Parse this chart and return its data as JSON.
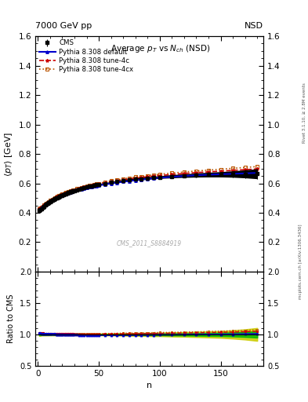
{
  "title_top_left": "7000 GeV pp",
  "title_top_right": "NSD",
  "plot_title": "Average $p_T$ vs $N_{ch}$ (NSD)",
  "xlabel": "n",
  "ylabel_main": "$\\langle p_T \\rangle$ [GeV]",
  "ylabel_ratio": "Ratio to CMS",
  "watermark": "CMS_2011_S8884919",
  "right_label": "mcplots.cern.ch [arXiv:1306.3436]",
  "right_label2": "Rivet 3.1.10, ≥ 2.8M events",
  "xlim": [
    -2,
    185
  ],
  "ylim_main": [
    0.0,
    1.6
  ],
  "ylim_ratio": [
    0.5,
    2.0
  ],
  "yticks_main": [
    0.2,
    0.4,
    0.6,
    0.8,
    1.0,
    1.2,
    1.4,
    1.6
  ],
  "yticks_ratio": [
    0.5,
    1.0,
    1.5,
    2.0
  ],
  "xticks": [
    0,
    50,
    100,
    150
  ],
  "cms_color": "#000000",
  "default_color": "#0000cc",
  "tune4c_color": "#cc0000",
  "tune4cx_color": "#bb5500",
  "cms_n": [
    1,
    2,
    3,
    4,
    5,
    6,
    7,
    8,
    9,
    10,
    11,
    12,
    13,
    14,
    15,
    16,
    17,
    18,
    19,
    20,
    21,
    22,
    23,
    24,
    25,
    26,
    27,
    28,
    29,
    30,
    32,
    34,
    36,
    38,
    40,
    42,
    44,
    46,
    48,
    50,
    55,
    60,
    65,
    70,
    75,
    80,
    85,
    90,
    95,
    100,
    110,
    120,
    130,
    140,
    150,
    160,
    170,
    180
  ],
  "cms_pt": [
    0.415,
    0.42,
    0.428,
    0.436,
    0.444,
    0.451,
    0.458,
    0.464,
    0.47,
    0.476,
    0.481,
    0.486,
    0.491,
    0.495,
    0.5,
    0.504,
    0.508,
    0.512,
    0.516,
    0.52,
    0.523,
    0.527,
    0.53,
    0.533,
    0.537,
    0.54,
    0.543,
    0.546,
    0.549,
    0.552,
    0.557,
    0.562,
    0.567,
    0.572,
    0.576,
    0.58,
    0.584,
    0.587,
    0.59,
    0.593,
    0.6,
    0.607,
    0.613,
    0.618,
    0.623,
    0.628,
    0.632,
    0.636,
    0.639,
    0.642,
    0.648,
    0.652,
    0.656,
    0.659,
    0.661,
    0.663,
    0.664,
    0.665
  ],
  "cms_err": [
    0.005,
    0.005,
    0.004,
    0.004,
    0.004,
    0.004,
    0.004,
    0.004,
    0.004,
    0.004,
    0.004,
    0.004,
    0.004,
    0.004,
    0.004,
    0.004,
    0.004,
    0.004,
    0.004,
    0.004,
    0.004,
    0.004,
    0.004,
    0.004,
    0.004,
    0.004,
    0.004,
    0.004,
    0.004,
    0.004,
    0.004,
    0.004,
    0.004,
    0.004,
    0.004,
    0.004,
    0.004,
    0.004,
    0.004,
    0.004,
    0.005,
    0.005,
    0.006,
    0.006,
    0.007,
    0.007,
    0.008,
    0.008,
    0.009,
    0.009,
    0.011,
    0.012,
    0.014,
    0.016,
    0.018,
    0.022,
    0.027,
    0.034
  ],
  "default_n": [
    1,
    2,
    3,
    4,
    5,
    6,
    7,
    8,
    9,
    10,
    11,
    12,
    13,
    14,
    15,
    16,
    17,
    18,
    19,
    20,
    21,
    22,
    23,
    24,
    25,
    26,
    27,
    28,
    29,
    30,
    32,
    34,
    36,
    38,
    40,
    42,
    44,
    46,
    48,
    50,
    55,
    60,
    65,
    70,
    75,
    80,
    85,
    90,
    95,
    100,
    110,
    120,
    130,
    140,
    150,
    160,
    170,
    180
  ],
  "default_pt": [
    0.423,
    0.428,
    0.435,
    0.442,
    0.449,
    0.456,
    0.462,
    0.468,
    0.474,
    0.479,
    0.484,
    0.489,
    0.494,
    0.498,
    0.502,
    0.506,
    0.51,
    0.514,
    0.517,
    0.521,
    0.524,
    0.527,
    0.53,
    0.533,
    0.536,
    0.539,
    0.541,
    0.544,
    0.547,
    0.549,
    0.554,
    0.558,
    0.562,
    0.566,
    0.57,
    0.574,
    0.577,
    0.58,
    0.583,
    0.586,
    0.593,
    0.599,
    0.605,
    0.611,
    0.616,
    0.621,
    0.626,
    0.63,
    0.634,
    0.638,
    0.644,
    0.65,
    0.655,
    0.659,
    0.662,
    0.665,
    0.668,
    0.671
  ],
  "tune4c_n": [
    1,
    2,
    3,
    4,
    5,
    6,
    7,
    8,
    9,
    10,
    11,
    12,
    13,
    14,
    15,
    16,
    17,
    18,
    19,
    20,
    21,
    22,
    23,
    24,
    25,
    26,
    27,
    28,
    29,
    30,
    32,
    34,
    36,
    38,
    40,
    42,
    44,
    46,
    48,
    50,
    55,
    60,
    65,
    70,
    75,
    80,
    85,
    90,
    95,
    100,
    110,
    120,
    130,
    140,
    150,
    160,
    170,
    180
  ],
  "tune4c_pt": [
    0.424,
    0.43,
    0.437,
    0.444,
    0.451,
    0.458,
    0.464,
    0.47,
    0.476,
    0.482,
    0.487,
    0.492,
    0.497,
    0.501,
    0.506,
    0.51,
    0.514,
    0.518,
    0.522,
    0.525,
    0.529,
    0.532,
    0.535,
    0.538,
    0.541,
    0.544,
    0.547,
    0.55,
    0.552,
    0.555,
    0.56,
    0.565,
    0.569,
    0.574,
    0.578,
    0.582,
    0.586,
    0.59,
    0.593,
    0.596,
    0.604,
    0.611,
    0.618,
    0.624,
    0.63,
    0.635,
    0.64,
    0.645,
    0.649,
    0.653,
    0.66,
    0.667,
    0.673,
    0.678,
    0.683,
    0.688,
    0.693,
    0.698
  ],
  "tune4cx_n": [
    1,
    2,
    3,
    4,
    5,
    6,
    7,
    8,
    9,
    10,
    11,
    12,
    13,
    14,
    15,
    16,
    17,
    18,
    19,
    20,
    21,
    22,
    23,
    24,
    25,
    26,
    27,
    28,
    29,
    30,
    32,
    34,
    36,
    38,
    40,
    42,
    44,
    46,
    48,
    50,
    55,
    60,
    65,
    70,
    75,
    80,
    85,
    90,
    95,
    100,
    110,
    120,
    130,
    140,
    150,
    160,
    170,
    180
  ],
  "tune4cx_pt": [
    0.424,
    0.43,
    0.437,
    0.444,
    0.451,
    0.458,
    0.465,
    0.471,
    0.477,
    0.483,
    0.488,
    0.493,
    0.498,
    0.503,
    0.507,
    0.511,
    0.515,
    0.519,
    0.523,
    0.527,
    0.53,
    0.534,
    0.537,
    0.54,
    0.543,
    0.546,
    0.549,
    0.552,
    0.555,
    0.557,
    0.563,
    0.568,
    0.572,
    0.577,
    0.581,
    0.585,
    0.589,
    0.593,
    0.597,
    0.6,
    0.609,
    0.617,
    0.624,
    0.631,
    0.637,
    0.643,
    0.648,
    0.653,
    0.658,
    0.662,
    0.67,
    0.677,
    0.684,
    0.69,
    0.696,
    0.702,
    0.708,
    0.714
  ]
}
